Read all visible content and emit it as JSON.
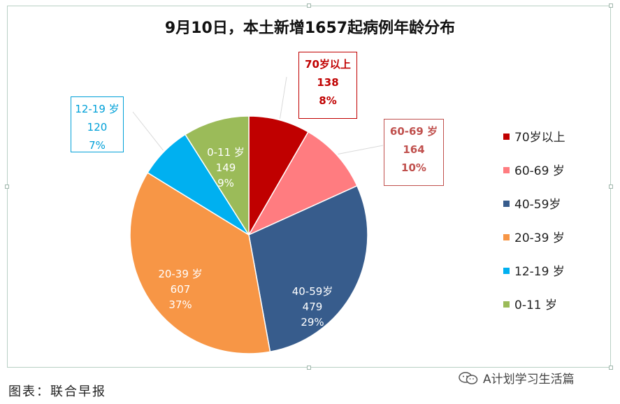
{
  "chart_data": {
    "type": "pie",
    "title": "9月10日，本土新增1657起病例年龄分布",
    "legend_position": "right",
    "slices": [
      {
        "label": "70岁以上",
        "legend": "70岁以上",
        "callout_label": "70岁以上",
        "value": 138,
        "percent_label": "8%",
        "color": "#c00000",
        "label_color": "#c00000",
        "label_style": "box"
      },
      {
        "label": "60-69 岁",
        "legend": "60-69 岁",
        "callout_label": "60-69 岁",
        "value": 164,
        "percent_label": "10%",
        "color": "#ff7c80",
        "label_color": "#c0504d",
        "label_style": "box"
      },
      {
        "label": "40-59岁",
        "legend": "40-59岁",
        "callout_label": "40-59岁",
        "value": 479,
        "percent_label": "29%",
        "color": "#375c8c",
        "label_color": "#ffffff",
        "label_style": "inside"
      },
      {
        "label": "20-39 岁",
        "legend": "20-39 岁",
        "callout_label": "20-39 岁",
        "value": 607,
        "percent_label": "37%",
        "color": "#f79646",
        "label_color": "#ffffff",
        "label_style": "inside"
      },
      {
        "label": "12-19 岁",
        "legend": "12-19 岁",
        "callout_label": "12-19 岁",
        "value": 120,
        "percent_label": "7%",
        "color": "#00b0f0",
        "label_color": "#00a0d8",
        "label_style": "box"
      },
      {
        "label": "0-11 岁",
        "legend": "0-11 岁",
        "callout_label": "0-11 岁",
        "value": 149,
        "percent_label": "9%",
        "color": "#9bbb59",
        "label_color": "#ffffff",
        "label_style": "inside"
      }
    ]
  },
  "footer": {
    "source": "图表：联合早报",
    "watermark": "A计划学习生活篇",
    "watermark_icon": "wechat-icon"
  }
}
